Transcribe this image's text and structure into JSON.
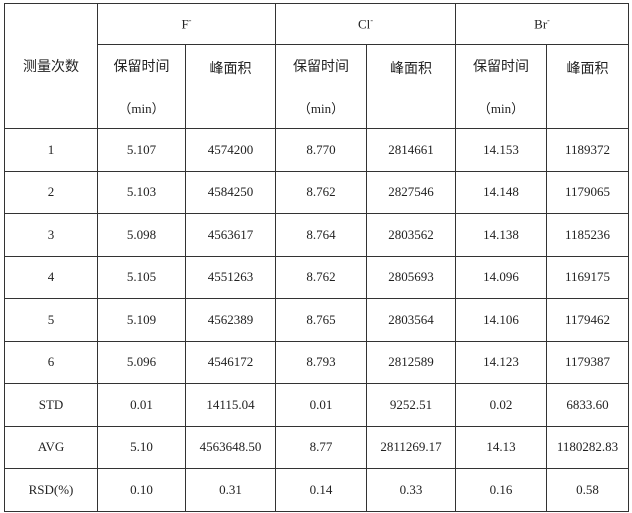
{
  "table": {
    "row_header": "测量次数",
    "ions": [
      {
        "name": "F",
        "charge": "-"
      },
      {
        "name": "Cl",
        "charge": "-"
      },
      {
        "name": "Br",
        "charge": "-"
      }
    ],
    "sub_headers": {
      "retention_time": "保留时间",
      "retention_unit": "（min）",
      "peak_area": "峰面积"
    },
    "rows": [
      [
        "1",
        "5.107",
        "4574200",
        "8.770",
        "2814661",
        "14.153",
        "1189372"
      ],
      [
        "2",
        "5.103",
        "4584250",
        "8.762",
        "2827546",
        "14.148",
        "1179065"
      ],
      [
        "3",
        "5.098",
        "4563617",
        "8.764",
        "2803562",
        "14.138",
        "1185236"
      ],
      [
        "4",
        "5.105",
        "4551263",
        "8.762",
        "2805693",
        "14.096",
        "1169175"
      ],
      [
        "5",
        "5.109",
        "4562389",
        "8.765",
        "2803564",
        "14.106",
        "1179462"
      ],
      [
        "6",
        "5.096",
        "4546172",
        "8.793",
        "2812589",
        "14.123",
        "1179387"
      ],
      [
        "STD",
        "0.01",
        "14115.04",
        "0.01",
        "9252.51",
        "0.02",
        "6833.60"
      ],
      [
        "AVG",
        "5.10",
        "4563648.50",
        "8.77",
        "2811269.17",
        "14.13",
        "1180282.83"
      ],
      [
        "RSD(%)",
        "0.10",
        "0.31",
        "0.14",
        "0.33",
        "0.16",
        "0.58"
      ]
    ]
  }
}
